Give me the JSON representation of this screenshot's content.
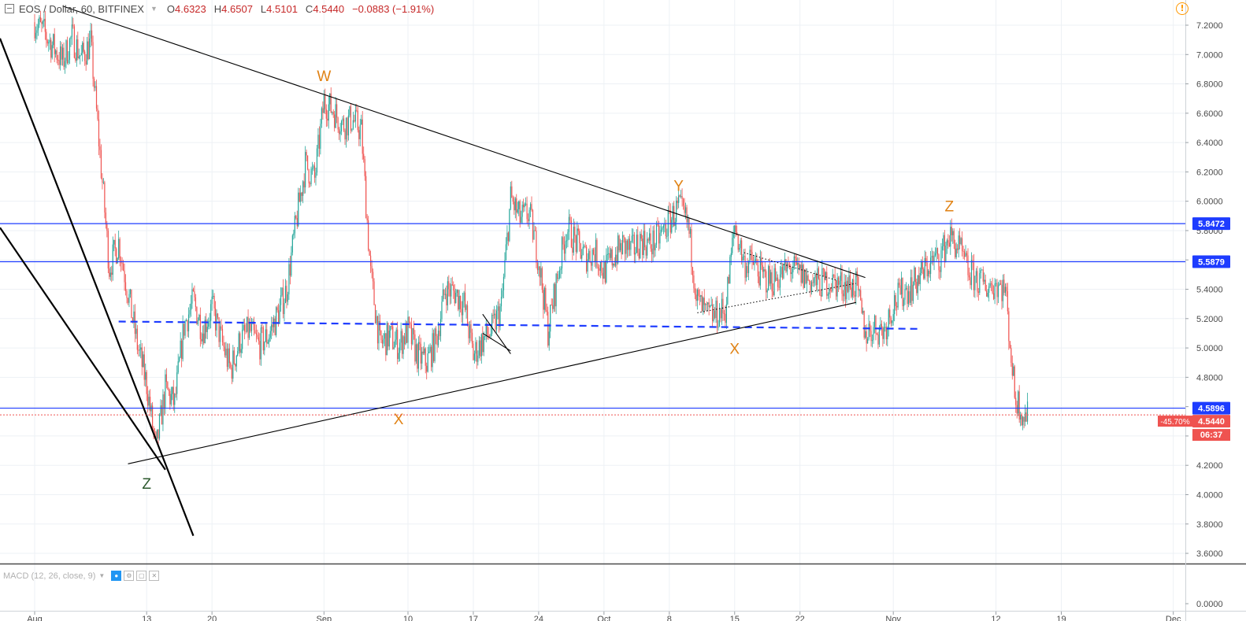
{
  "header": {
    "title": "EOS / Dollar, 60, BITFINEX",
    "o_label": "O",
    "o_value": "4.6323",
    "h_label": "H",
    "h_value": "4.6507",
    "l_label": "L",
    "l_value": "4.5101",
    "c_label": "C",
    "c_value": "4.5440",
    "change": "−0.0883 (−1.91%)"
  },
  "indicator": {
    "label": "MACD (12, 26, close, 9)"
  },
  "colors": {
    "up": "#26a69a",
    "down": "#ef5350",
    "trendline": "#000000",
    "level": "#1e3cff",
    "wave_label": "#e08214",
    "wave_label_green": "#2e5a2e",
    "price_tag": "#ef5350"
  },
  "chart_data": {
    "type": "candlestick",
    "symbol": "EOS / Dollar",
    "interval": "60",
    "exchange": "BITFINEX",
    "ylim": [
      -0.1,
      7.4
    ],
    "y_ticks": [
      "7.2000",
      "7.0000",
      "6.8000",
      "6.6000",
      "6.4000",
      "6.2000",
      "6.0000",
      "5.8000",
      "5.6000",
      "5.4000",
      "5.2000",
      "5.0000",
      "4.8000",
      "4.6000",
      "4.4000",
      "4.2000",
      "4.0000",
      "3.8000",
      "3.6000",
      "0.0000"
    ],
    "x_ticks": [
      "Aug",
      "13",
      "20",
      "Sep",
      "10",
      "17",
      "24",
      "Oct",
      "8",
      "15",
      "22",
      "Nov",
      "12",
      "19",
      "Dec"
    ],
    "horizontal_levels": [
      {
        "price": 5.8472,
        "label": "5.8472"
      },
      {
        "price": 5.5879,
        "label": "5.5879"
      },
      {
        "price": 4.5896,
        "label": "4.5896"
      }
    ],
    "current_price": {
      "price": 4.544,
      "label": "4.5440",
      "change_label": "-45.70%",
      "countdown": "06:37"
    },
    "dashed_support": {
      "from": [
        "Aug 10",
        5.18
      ],
      "to": [
        "Nov 04",
        5.13
      ]
    },
    "wave_labels": [
      {
        "text": "W",
        "date": "Sep 01",
        "price": 6.82,
        "color": "orange"
      },
      {
        "text": "X",
        "date": "Sep 09",
        "price": 4.48,
        "color": "orange"
      },
      {
        "text": "Y",
        "date": "Oct 09",
        "price": 6.07,
        "color": "orange"
      },
      {
        "text": "X",
        "date": "Oct 15",
        "price": 4.96,
        "color": "orange"
      },
      {
        "text": "Z",
        "date": "Nov 07",
        "price": 5.93,
        "color": "orange"
      },
      {
        "text": "Z",
        "date": "Aug 13",
        "price": 4.04,
        "color": "green"
      }
    ],
    "ohlc_path": [
      [
        "Aug 01",
        7.22
      ],
      [
        "Aug 02",
        7.15
      ],
      [
        "Aug 03",
        7.05
      ],
      [
        "Aug 04",
        6.95
      ],
      [
        "Aug 05",
        7.12
      ],
      [
        "Aug 06",
        6.98
      ],
      [
        "Aug 07",
        7.08
      ],
      [
        "Aug 08",
        6.32
      ],
      [
        "Aug 09",
        5.55
      ],
      [
        "Aug 10",
        5.72
      ],
      [
        "Aug 11",
        5.38
      ],
      [
        "Aug 12",
        5.02
      ],
      [
        "Aug 13",
        4.75
      ],
      [
        "Aug 14",
        4.3
      ],
      [
        "Aug 15",
        4.72
      ],
      [
        "Aug 16",
        4.62
      ],
      [
        "Aug 17",
        5.15
      ],
      [
        "Aug 18",
        5.32
      ],
      [
        "Aug 19",
        5.12
      ],
      [
        "Aug 20",
        5.28
      ],
      [
        "Aug 21",
        5.05
      ],
      [
        "Aug 22",
        4.85
      ],
      [
        "Aug 23",
        5.05
      ],
      [
        "Aug 24",
        5.12
      ],
      [
        "Aug 25",
        5.02
      ],
      [
        "Aug 26",
        5.08
      ],
      [
        "Aug 27",
        5.22
      ],
      [
        "Aug 28",
        5.4
      ],
      [
        "Aug 29",
        5.85
      ],
      [
        "Aug 30",
        6.25
      ],
      [
        "Aug 31",
        6.15
      ],
      [
        "Sep 01",
        6.68
      ],
      [
        "Sep 02",
        6.62
      ],
      [
        "Sep 03",
        6.52
      ],
      [
        "Sep 04",
        6.56
      ],
      [
        "Sep 05",
        6.48
      ],
      [
        "Sep 06",
        5.5
      ],
      [
        "Sep 07",
        5.02
      ],
      [
        "Sep 08",
        5.08
      ],
      [
        "Sep 09",
        5.02
      ],
      [
        "Sep 10",
        5.12
      ],
      [
        "Sep 11",
        4.95
      ],
      [
        "Sep 12",
        4.9
      ],
      [
        "Sep 13",
        5.05
      ],
      [
        "Sep 14",
        5.4
      ],
      [
        "Sep 15",
        5.38
      ],
      [
        "Sep 16",
        5.3
      ],
      [
        "Sep 17",
        4.95
      ],
      [
        "Sep 18",
        5.05
      ],
      [
        "Sep 19",
        5.12
      ],
      [
        "Sep 20",
        5.28
      ],
      [
        "Sep 21",
        6.02
      ],
      [
        "Sep 22",
        5.88
      ],
      [
        "Sep 23",
        5.92
      ],
      [
        "Sep 24",
        5.6
      ],
      [
        "Sep 25",
        5.12
      ],
      [
        "Sep 26",
        5.48
      ],
      [
        "Sep 27",
        5.82
      ],
      [
        "Sep 28",
        5.72
      ],
      [
        "Sep 29",
        5.62
      ],
      [
        "Sep 30",
        5.66
      ],
      [
        "Oct 01",
        5.52
      ],
      [
        "Oct 02",
        5.62
      ],
      [
        "Oct 03",
        5.7
      ],
      [
        "Oct 04",
        5.66
      ],
      [
        "Oct 05",
        5.74
      ],
      [
        "Oct 06",
        5.7
      ],
      [
        "Oct 07",
        5.76
      ],
      [
        "Oct 08",
        5.86
      ],
      [
        "Oct 09",
        5.96
      ],
      [
        "Oct 10",
        5.84
      ],
      [
        "Oct 11",
        5.32
      ],
      [
        "Oct 12",
        5.22
      ],
      [
        "Oct 13",
        5.22
      ],
      [
        "Oct 14",
        5.26
      ],
      [
        "Oct 15",
        5.84
      ],
      [
        "Oct 16",
        5.58
      ],
      [
        "Oct 17",
        5.58
      ],
      [
        "Oct 18",
        5.48
      ],
      [
        "Oct 19",
        5.46
      ],
      [
        "Oct 20",
        5.5
      ],
      [
        "Oct 21",
        5.55
      ],
      [
        "Oct 22",
        5.5
      ],
      [
        "Oct 23",
        5.46
      ],
      [
        "Oct 24",
        5.44
      ],
      [
        "Oct 25",
        5.45
      ],
      [
        "Oct 26",
        5.44
      ],
      [
        "Oct 27",
        5.43
      ],
      [
        "Oct 28",
        5.42
      ],
      [
        "Oct 29",
        5.1
      ],
      [
        "Oct 30",
        5.14
      ],
      [
        "Oct 31",
        5.12
      ],
      [
        "Nov 01",
        5.3
      ],
      [
        "Nov 02",
        5.38
      ],
      [
        "Nov 03",
        5.42
      ],
      [
        "Nov 04",
        5.5
      ],
      [
        "Nov 05",
        5.58
      ],
      [
        "Nov 06",
        5.62
      ],
      [
        "Nov 07",
        5.76
      ],
      [
        "Nov 08",
        5.68
      ],
      [
        "Nov 09",
        5.52
      ],
      [
        "Nov 10",
        5.46
      ],
      [
        "Nov 11",
        5.42
      ],
      [
        "Nov 12",
        5.44
      ],
      [
        "Nov 13",
        5.4
      ],
      [
        "Nov 14",
        4.68
      ],
      [
        "Nov 15",
        4.54
      ]
    ]
  }
}
